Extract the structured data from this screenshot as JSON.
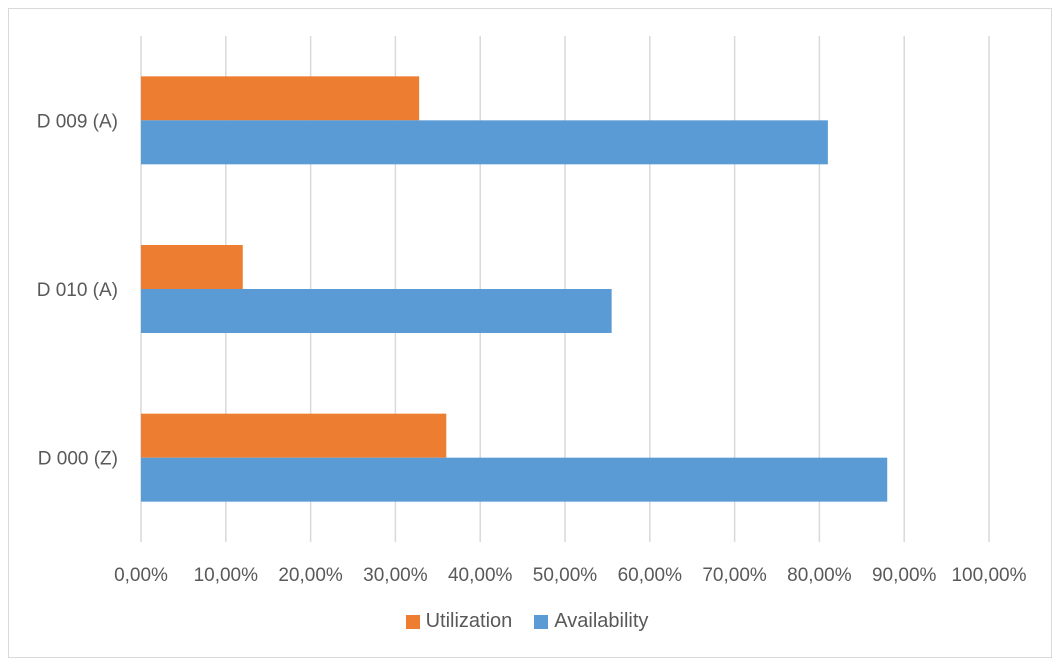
{
  "chart_data": {
    "type": "bar",
    "orientation": "horizontal",
    "categories": [
      "D 009 (A)",
      "D 010 (A)",
      "D 000 (Z)"
    ],
    "series": [
      {
        "name": "Utilization",
        "color": "#ED7D31",
        "values": [
          32.8,
          12.0,
          36.0
        ]
      },
      {
        "name": "Availability",
        "color": "#5B9BD5",
        "values": [
          81.0,
          55.5,
          88.0
        ]
      }
    ],
    "xlim": [
      0,
      100
    ],
    "x_ticks": [
      0,
      10,
      20,
      30,
      40,
      50,
      60,
      70,
      80,
      90,
      100
    ],
    "x_tick_labels": [
      "0,00%",
      "10,00%",
      "20,00%",
      "30,00%",
      "40,00%",
      "50,00%",
      "60,00%",
      "70,00%",
      "80,00%",
      "90,00%",
      "100,00%"
    ],
    "grid": "vertical",
    "legend_position": "bottom"
  },
  "legend": {
    "utilization_label": "Utilization",
    "availability_label": "Availability"
  }
}
